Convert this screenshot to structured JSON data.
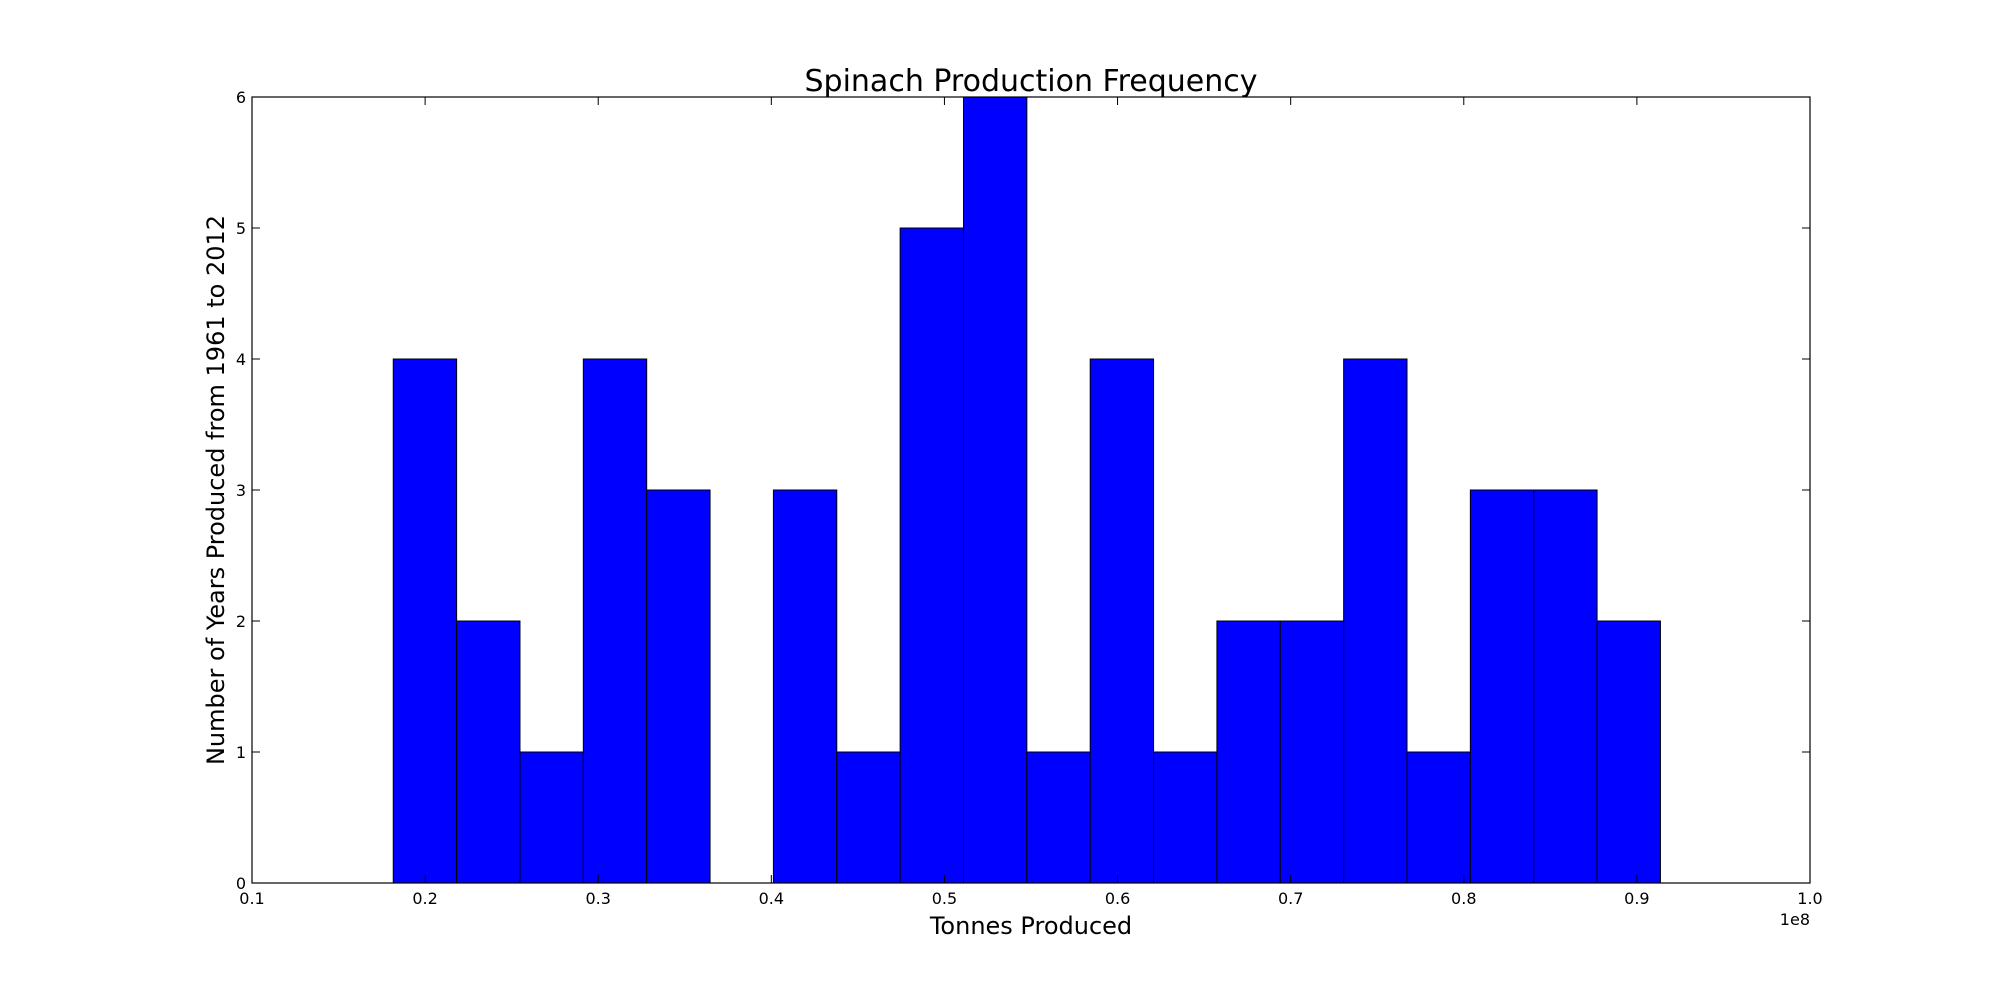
{
  "chart_data": {
    "type": "bar",
    "title": "Spinach Production Frequency",
    "xlabel": "Tonnes Produced",
    "ylabel": "Number of Years Produced from 1961 to 2012",
    "x_offset_label": "1e8",
    "xlim": [
      0.1,
      1.0
    ],
    "ylim": [
      0,
      6
    ],
    "x_ticks": [
      0.1,
      0.2,
      0.3,
      0.4,
      0.5,
      0.6,
      0.7,
      0.8,
      0.9,
      1.0
    ],
    "x_tick_labels": [
      "0.1",
      "0.2",
      "0.3",
      "0.4",
      "0.5",
      "0.6",
      "0.7",
      "0.8",
      "0.9",
      "1.0"
    ],
    "y_ticks": [
      0,
      1,
      2,
      3,
      4,
      5,
      6
    ],
    "y_tick_labels": [
      "0",
      "1",
      "2",
      "3",
      "4",
      "5",
      "6"
    ],
    "bin_edges": [
      0.1816,
      0.2182,
      0.2548,
      0.2914,
      0.328,
      0.3646,
      0.4012,
      0.4378,
      0.4744,
      0.511,
      0.5476,
      0.5842,
      0.6208,
      0.6574,
      0.694,
      0.7306,
      0.7672,
      0.8038,
      0.8404,
      0.877,
      0.9136
    ],
    "values": [
      4,
      2,
      1,
      4,
      3,
      0,
      3,
      1,
      5,
      6,
      1,
      4,
      1,
      2,
      2,
      4,
      1,
      3,
      3,
      2
    ],
    "bar_color": "#0000ff",
    "grid": false
  }
}
